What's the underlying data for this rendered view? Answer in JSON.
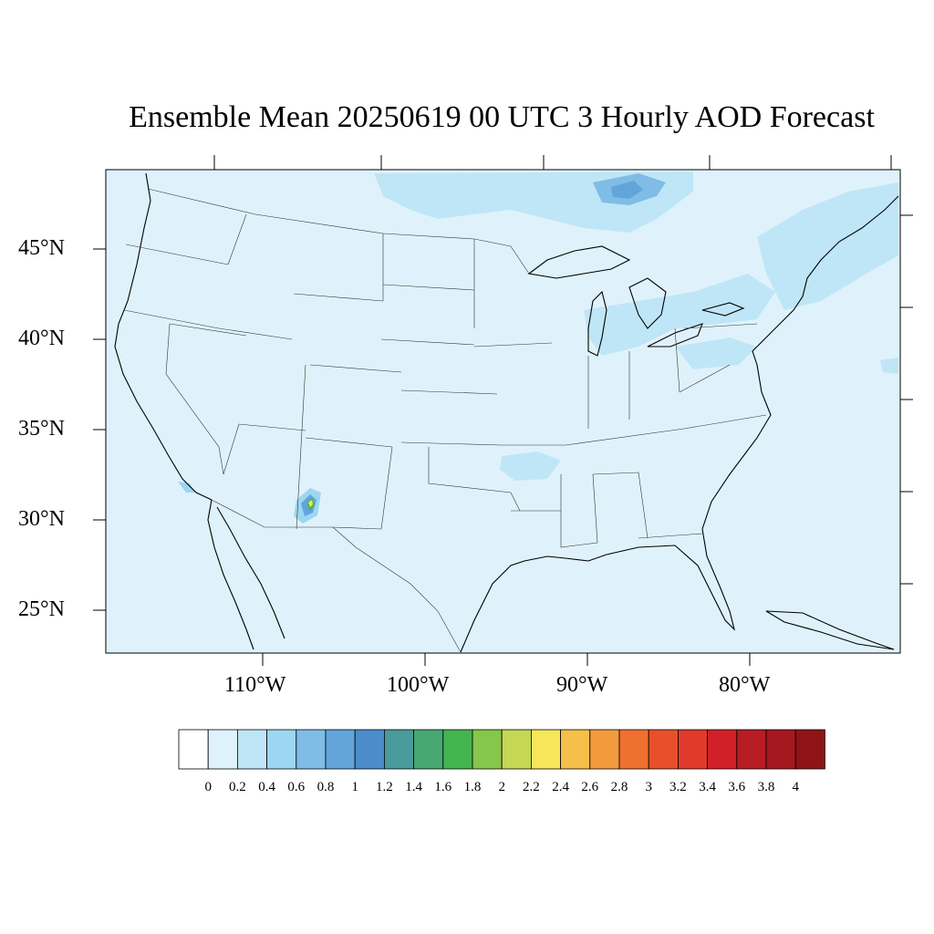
{
  "title": "Ensemble Mean 20250619 00 UTC 3 Hourly AOD Forecast",
  "map": {
    "background_color": "#dff2fb",
    "lat_labels": [
      "45°N",
      "40°N",
      "35°N",
      "30°N",
      "25°N"
    ],
    "lon_labels": [
      "110°W",
      "100°W",
      "90°W",
      "80°W"
    ]
  },
  "colorbar": {
    "labels": [
      "0",
      "0.2",
      "0.4",
      "0.6",
      "0.8",
      "1",
      "1.2",
      "1.4",
      "1.6",
      "1.8",
      "2",
      "2.2",
      "2.4",
      "2.6",
      "2.8",
      "3",
      "3.2",
      "3.4",
      "3.6",
      "3.8",
      "4"
    ],
    "colors": [
      "#ffffff",
      "#dff2fb",
      "#bfe6f7",
      "#9dd6f2",
      "#7fbde6",
      "#62a5db",
      "#4b8ccb",
      "#4a9b9b",
      "#47a872",
      "#45b550",
      "#86c64a",
      "#c5d854",
      "#f6e65a",
      "#f6bf4c",
      "#f49a3e",
      "#f07030",
      "#e8502c",
      "#e03a2a",
      "#d22028",
      "#b81c25",
      "#a51820",
      "#8e1416"
    ]
  }
}
